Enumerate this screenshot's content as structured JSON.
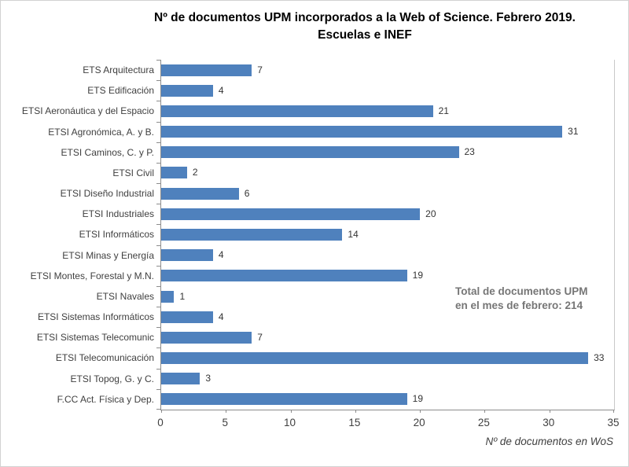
{
  "title": {
    "line1": "Nº de documentos UPM incorporados a la Web of Science. Febrero 2019.",
    "line2": "Escuelas e INEF"
  },
  "annotation": {
    "line1": "Total de documentos UPM",
    "line2": "en el mes de febrero: 214"
  },
  "chart_data": {
    "type": "bar",
    "orientation": "horizontal",
    "title": "Nº de documentos UPM incorporados a la Web of Science. Febrero 2019. Escuelas e INEF",
    "categories": [
      "ETS Arquitectura",
      "ETS Edificación",
      "ETSI Aeronáutica y del Espacio",
      "ETSI Agronómica, A. y B.",
      "ETSI Caminos, C. y P.",
      "ETSI Civil",
      "ETSI Diseño Industrial",
      "ETSI Industriales",
      "ETSI Informáticos",
      "ETSI Minas y Energía",
      "ETSI Montes, Forestal y M.N.",
      "ETSI Navales",
      "ETSI Sistemas Informáticos",
      "ETSI Sistemas Telecomunic",
      "ETSI Telecomunicación",
      "ETSI Topog, G. y C.",
      "F.CC Act. Física y Dep."
    ],
    "values": [
      7,
      4,
      21,
      31,
      23,
      2,
      6,
      20,
      14,
      4,
      19,
      1,
      4,
      7,
      33,
      3,
      19
    ],
    "data_labels": true,
    "xlabel": "Nº de documentos en WoS",
    "ylabel": "",
    "xlim": [
      0,
      35
    ],
    "xticks": [
      0,
      5,
      10,
      15,
      20,
      25,
      30,
      35
    ],
    "grid": false,
    "legend": false,
    "bar_color": "#4f81bd",
    "axis_color": "#8c8c8c",
    "label_color": "#3f3f3f"
  }
}
